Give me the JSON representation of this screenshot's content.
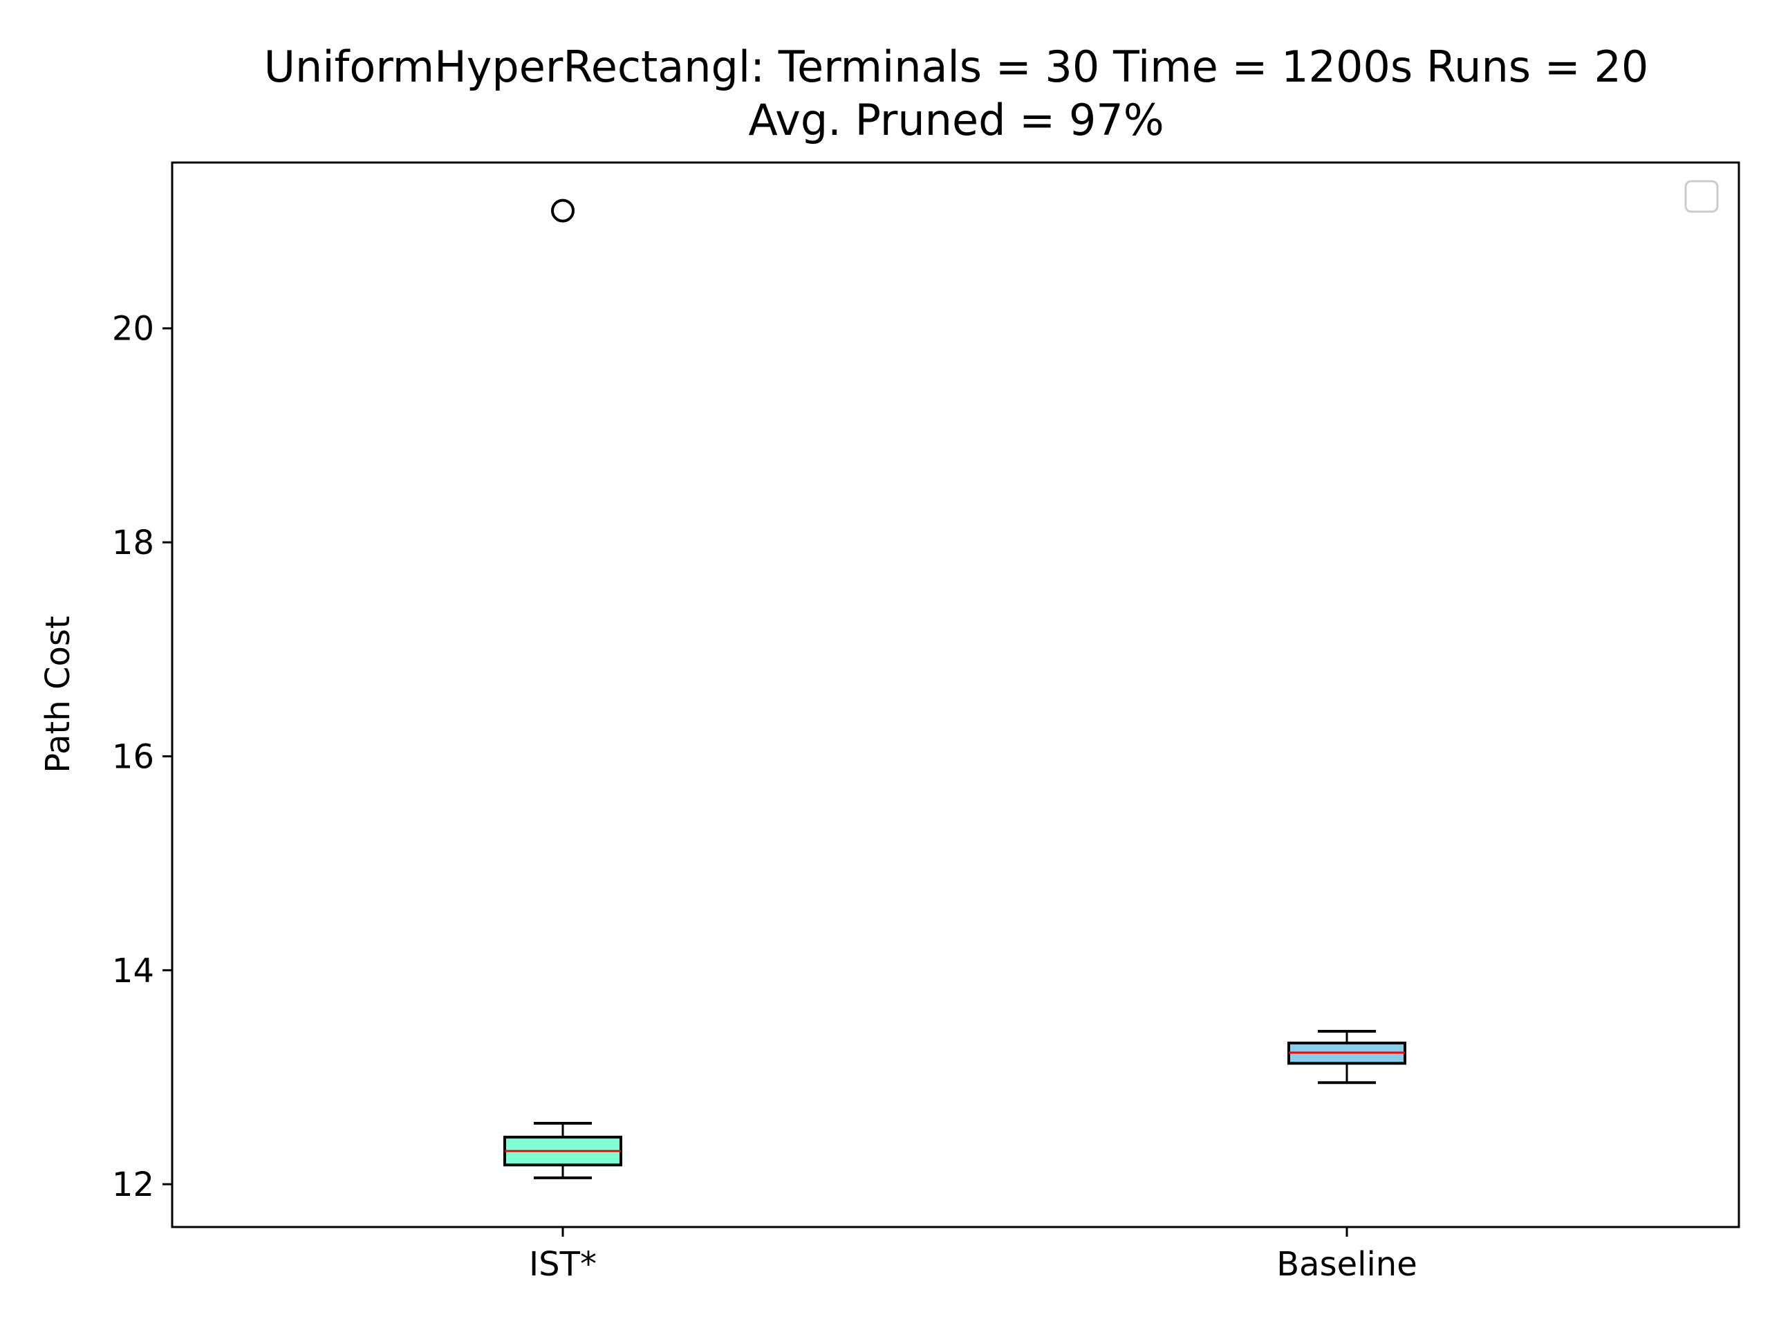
{
  "chart_data": {
    "type": "box",
    "title_line1": "UniformHyperRectangl:  Terminals = 30  Time = 1200s  Runs = 20",
    "title_line2": "Avg. Pruned = 97%",
    "xlabel": "",
    "ylabel": "Path Cost",
    "ylim": [
      11.6,
      21.55
    ],
    "yticks": [
      12,
      14,
      16,
      18,
      20
    ],
    "grid": false,
    "legend": {
      "placement": "upper right",
      "entries": []
    },
    "boxes": [
      {
        "category": "IST*",
        "whisker_low": 12.06,
        "q1": 12.18,
        "median": 12.31,
        "q3": 12.44,
        "whisker_high": 12.57,
        "outliers": [
          21.1
        ],
        "fill": "#7fffd4"
      },
      {
        "category": "Baseline",
        "whisker_low": 12.95,
        "q1": 13.13,
        "median": 13.23,
        "q3": 13.32,
        "whisker_high": 13.43,
        "outliers": [],
        "fill": "#87ceeb"
      }
    ],
    "median_color": "#ff0000",
    "box_edge_color": "#000000"
  }
}
